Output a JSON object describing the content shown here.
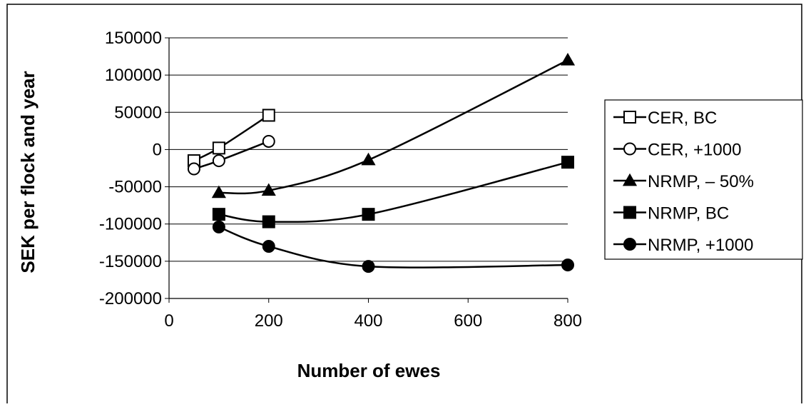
{
  "chart_data": {
    "type": "line",
    "title": "",
    "xlabel": "Number of ewes",
    "ylabel": "SEK per flock and year",
    "xlim": [
      0,
      800
    ],
    "ylim": [
      -200000,
      150000
    ],
    "x_ticks": [
      "0",
      "200",
      "400",
      "600",
      "800"
    ],
    "y_ticks": [
      "150000",
      "100000",
      "50000",
      "0",
      "-50000",
      "-100000",
      "-150000",
      "-200000"
    ],
    "grid": "horizontal",
    "legend_position": "right",
    "series": [
      {
        "name": "CER, BC",
        "marker": "square-open",
        "color": "#000000",
        "x": [
          50,
          100,
          200
        ],
        "y": [
          -15000,
          2000,
          46000
        ]
      },
      {
        "name": "CER, +1000",
        "marker": "circle-open",
        "color": "#000000",
        "x": [
          50,
          100,
          200
        ],
        "y": [
          -26000,
          -15000,
          11000
        ]
      },
      {
        "name": "NRMP, – 50%",
        "marker": "triangle-filled",
        "color": "#000000",
        "x": [
          100,
          200,
          400,
          800
        ],
        "y": [
          -58000,
          -55000,
          -14000,
          120000
        ]
      },
      {
        "name": "NRMP, BC",
        "marker": "square-filled",
        "color": "#000000",
        "x": [
          100,
          200,
          400,
          800
        ],
        "y": [
          -87000,
          -97000,
          -87000,
          -17000
        ]
      },
      {
        "name": "NRMP, +1000",
        "marker": "circle-filled",
        "color": "#000000",
        "x": [
          100,
          200,
          400,
          800
        ],
        "y": [
          -104000,
          -130000,
          -157000,
          -155000
        ]
      }
    ]
  }
}
